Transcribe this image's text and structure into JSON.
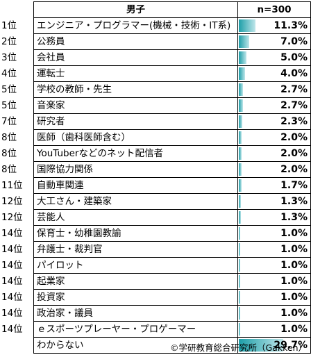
{
  "chart_data": {
    "type": "table",
    "columns": [
      "男子",
      "n=300"
    ],
    "rows": [
      {
        "rank": "1位",
        "label": "エンジニア・プログラマー(機械・技術・IT系)",
        "value": 11.3
      },
      {
        "rank": "2位",
        "label": "公務員",
        "value": 7.0
      },
      {
        "rank": "3位",
        "label": "会社員",
        "value": 5.0
      },
      {
        "rank": "4位",
        "label": "運転士",
        "value": 4.0
      },
      {
        "rank": "5位",
        "label": "学校の教師・先生",
        "value": 2.7
      },
      {
        "rank": "5位",
        "label": "音楽家",
        "value": 2.7
      },
      {
        "rank": "7位",
        "label": "研究者",
        "value": 2.3
      },
      {
        "rank": "8位",
        "label": "医師（歯科医師含む）",
        "value": 2.0
      },
      {
        "rank": "8位",
        "label": "YouTuberなどのネット配信者",
        "value": 2.0
      },
      {
        "rank": "8位",
        "label": "国際協力関係",
        "value": 2.0
      },
      {
        "rank": "11位",
        "label": "自動車関連",
        "value": 1.7
      },
      {
        "rank": "12位",
        "label": "大工さん・建築家",
        "value": 1.3
      },
      {
        "rank": "12位",
        "label": "芸能人",
        "value": 1.3
      },
      {
        "rank": "14位",
        "label": "保育士・幼稚園教諭",
        "value": 1.0
      },
      {
        "rank": "14位",
        "label": "弁護士・裁判官",
        "value": 1.0
      },
      {
        "rank": "14位",
        "label": "パイロット",
        "value": 1.0
      },
      {
        "rank": "14位",
        "label": "起業家",
        "value": 1.0
      },
      {
        "rank": "14位",
        "label": "投資家",
        "value": 1.0
      },
      {
        "rank": "14位",
        "label": "政治家・議員",
        "value": 1.0
      },
      {
        "rank": "14位",
        "label": "ｅスポーツプレーヤー・プロゲーマー",
        "value": 1.0
      },
      {
        "rank": "",
        "label": "わからない",
        "value": 29.7
      }
    ],
    "value_unit": "%",
    "bar_max": 29.7,
    "bar_color": "#1d9ea8"
  },
  "credit": "©学研教育総合研究所（Gakken）"
}
